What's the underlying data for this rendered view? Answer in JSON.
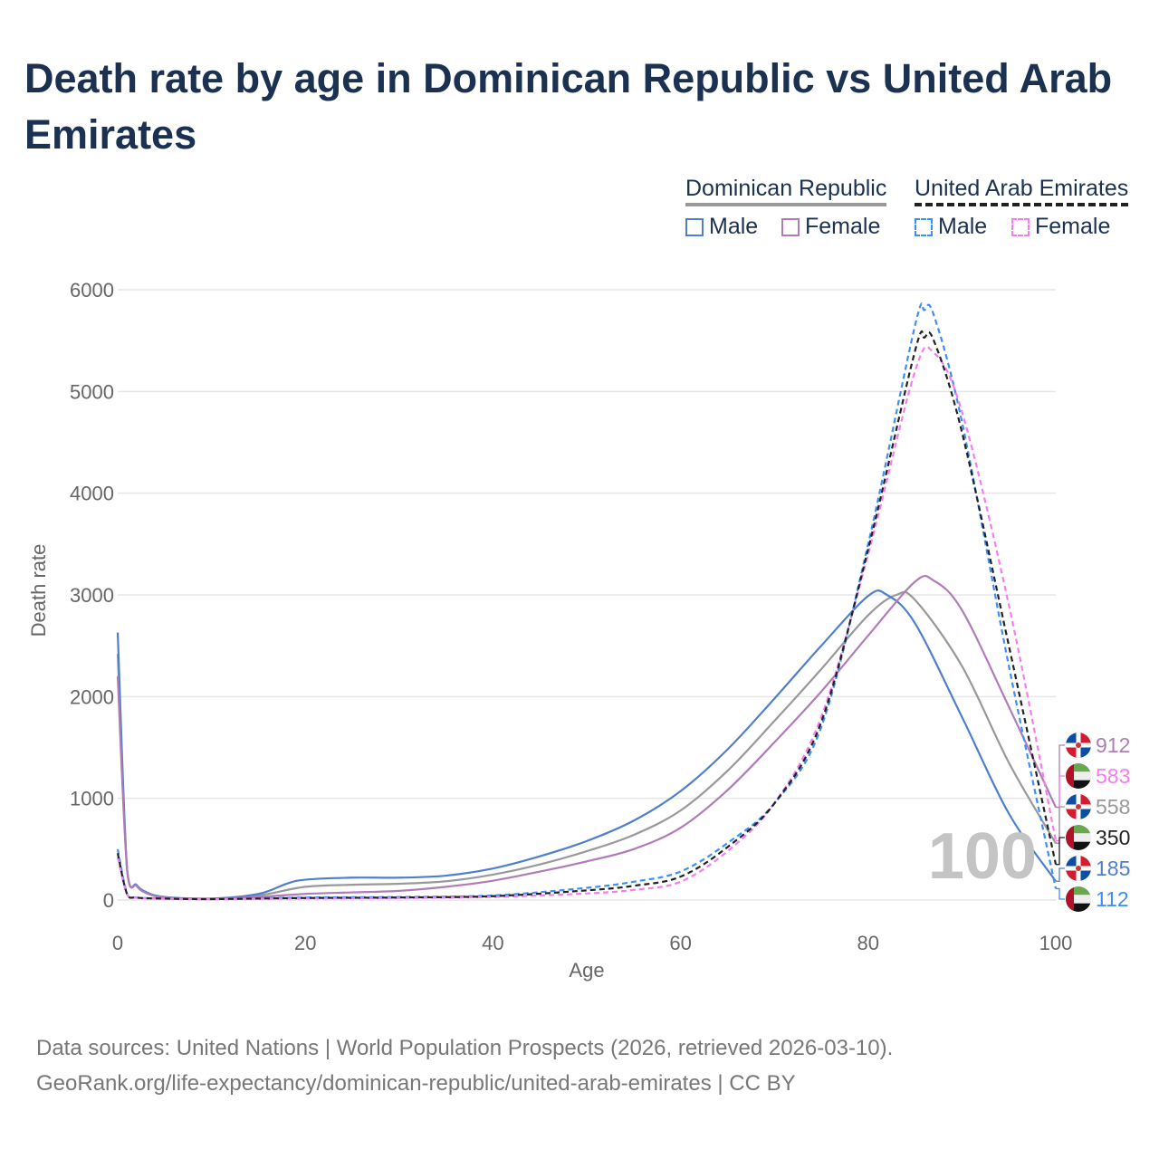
{
  "title": "Death rate by age in Dominican Republic vs United Arab Emirates",
  "legend": {
    "group1": "Dominican Republic",
    "group2": "United Arab Emirates",
    "male": "Male",
    "female": "Female"
  },
  "footer": {
    "line1": "Data sources: United Nations | World Population Prospects (2026, retrieved 2026-03-10).",
    "line2": "GeoRank.org/life-expectancy/dominican-republic/united-arab-emirates | CC BY"
  },
  "watermark": "100",
  "chart_data": {
    "type": "line",
    "xlabel": "Age",
    "ylabel": "Death rate",
    "xlim": [
      0,
      100
    ],
    "ylim": [
      0,
      6000
    ],
    "xticks": [
      "0",
      "20",
      "40",
      "60",
      "80",
      "100"
    ],
    "yticks": [
      "0",
      "1000",
      "2000",
      "3000",
      "4000",
      "5000",
      "6000"
    ],
    "series": [
      {
        "name": "Dominican Republic Male",
        "color": "#4f7fcc",
        "dash": false,
        "end_label": "185",
        "flag": "do",
        "x": [
          0,
          1,
          2,
          3,
          5,
          10,
          15,
          18,
          20,
          25,
          30,
          35,
          40,
          45,
          50,
          55,
          60,
          65,
          70,
          75,
          80,
          82,
          85,
          90,
          95,
          100
        ],
        "y": [
          2630,
          300,
          150,
          80,
          30,
          15,
          60,
          160,
          200,
          220,
          220,
          240,
          310,
          430,
          580,
          780,
          1070,
          1480,
          1980,
          2500,
          2990,
          3000,
          2720,
          1800,
          850,
          185
        ]
      },
      {
        "name": "Dominican Republic Female",
        "color": "#b07cb8",
        "dash": false,
        "end_label": "912",
        "flag": "do",
        "x": [
          0,
          1,
          2,
          3,
          5,
          10,
          15,
          20,
          25,
          30,
          35,
          40,
          45,
          50,
          55,
          60,
          65,
          70,
          75,
          80,
          85,
          87,
          90,
          95,
          100
        ],
        "y": [
          2200,
          300,
          140,
          70,
          25,
          12,
          30,
          60,
          75,
          90,
          130,
          190,
          280,
          380,
          500,
          710,
          1080,
          1550,
          2050,
          2600,
          3130,
          3140,
          2850,
          1900,
          912
        ]
      },
      {
        "name": "Dominican Republic Total",
        "color": "#999999",
        "dash": false,
        "end_label": "558",
        "flag": "do",
        "x": [
          0,
          1,
          2,
          3,
          5,
          10,
          15,
          20,
          25,
          30,
          35,
          40,
          45,
          50,
          55,
          60,
          65,
          70,
          75,
          80,
          83,
          85,
          90,
          95,
          100
        ],
        "y": [
          2420,
          300,
          145,
          75,
          28,
          13,
          45,
          130,
          150,
          160,
          185,
          250,
          350,
          480,
          640,
          880,
          1270,
          1760,
          2270,
          2800,
          3000,
          2950,
          2300,
          1350,
          558
        ]
      },
      {
        "name": "United Arab Emirates Male",
        "color": "#3e8ef7",
        "dash": true,
        "end_label": "112",
        "flag": "ae",
        "x": [
          0,
          1,
          2,
          5,
          10,
          20,
          30,
          40,
          50,
          55,
          60,
          65,
          70,
          75,
          80,
          85,
          86,
          87,
          90,
          95,
          100
        ],
        "y": [
          500,
          60,
          25,
          15,
          10,
          25,
          30,
          45,
          120,
          180,
          280,
          560,
          950,
          1700,
          3500,
          5650,
          5800,
          5750,
          4700,
          2300,
          112
        ]
      },
      {
        "name": "United Arab Emirates Female",
        "color": "#f77cf0",
        "dash": true,
        "end_label": "583",
        "flag": "ae",
        "x": [
          0,
          1,
          2,
          5,
          10,
          20,
          30,
          40,
          50,
          55,
          60,
          65,
          70,
          75,
          80,
          85,
          87,
          90,
          95,
          100
        ],
        "y": [
          420,
          55,
          22,
          12,
          8,
          15,
          20,
          30,
          65,
          100,
          180,
          480,
          950,
          1800,
          3400,
          5200,
          5380,
          4800,
          2900,
          583
        ]
      },
      {
        "name": "United Arab Emirates Total",
        "color": "#222222",
        "dash": true,
        "end_label": "350",
        "flag": "ae",
        "x": [
          0,
          1,
          2,
          5,
          10,
          20,
          30,
          40,
          50,
          55,
          60,
          65,
          70,
          75,
          80,
          85,
          86,
          87,
          90,
          95,
          100
        ],
        "y": [
          460,
          58,
          24,
          14,
          9,
          20,
          25,
          38,
          95,
          140,
          230,
          520,
          950,
          1750,
          3450,
          5400,
          5530,
          5500,
          4600,
          2500,
          350
        ]
      }
    ]
  }
}
